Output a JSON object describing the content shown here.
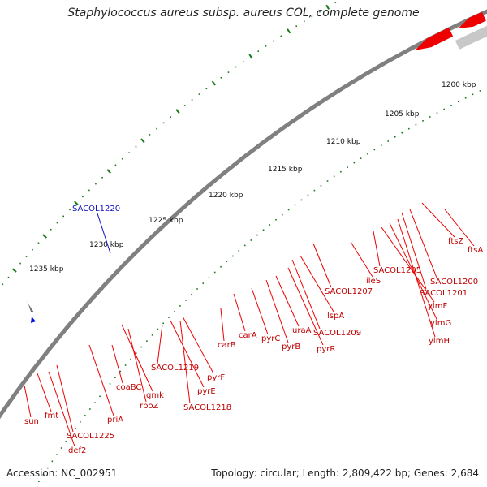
{
  "title": "Staphylococcus aureus subsp. aureus COL, complete genome",
  "footer": {
    "accession": "Accession: NC_002951",
    "summary": "Topology: circular; Length: 2,809,422 bp; Genes: 2,684"
  },
  "colors": {
    "backbone": "#808080",
    "gene_red": "#ee0000",
    "gene_light_red": "#f08080",
    "label_red": "#c00000",
    "label_blue": "#1010c0",
    "tick_green": "#1a7a1a",
    "cyan": "#20b8e8",
    "steel_blue": "#4070b0",
    "magenta": "#e0208a",
    "olive": "#6a9a20",
    "khaki": "#e8e0a0",
    "orange": "#f08c10",
    "blue": "#0010e0",
    "gray": "#707070"
  },
  "scale_labels": [
    "1200 kbp",
    "1205 kbp",
    "1210 kbp",
    "1215 kbp",
    "1220 kbp",
    "1225 kbp",
    "1230 kbp",
    "1235 kbp"
  ],
  "gene_labels": [
    "sun",
    "fmt",
    "def2",
    "SACOL1225",
    "priA",
    "coaBC",
    "gmk",
    "rpoZ",
    "SACOL1219",
    "pyrE",
    "pyrF",
    "SACOL1218",
    "carB",
    "carA",
    "pyrC",
    "pyrB",
    "uraA",
    "pyrR",
    "SACOL1209",
    "lspA",
    "SACOL1207",
    "ileS",
    "SACOL1205",
    "ylmF",
    "ylmG",
    "ylmH",
    "SACOL1201",
    "SACOL1200",
    "ftsZ",
    "ftsA"
  ],
  "special_label": "SACOL1220"
}
